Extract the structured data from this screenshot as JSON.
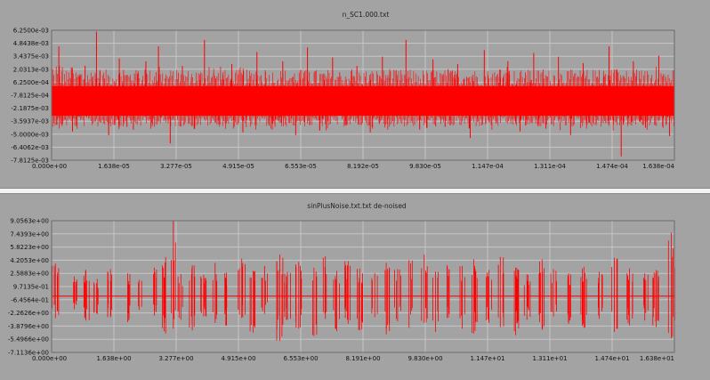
{
  "colors": {
    "background": "#a3a3a3",
    "grid": "#c6c6c6",
    "series": "#ff0000",
    "divider": "#f4f4f4"
  },
  "chart_data": [
    {
      "type": "line",
      "title": "n_SC1.000.txt",
      "xlabel": "",
      "ylabel": "",
      "grid": true,
      "legend": "none",
      "xlim": [
        0,
        0.0001638
      ],
      "ylim": [
        -0.0078125,
        0.00625
      ],
      "x_tick_labels": [
        "0.000e+00",
        "1.638e-05",
        "3.277e-05",
        "4.915e-05",
        "6.553e-05",
        "8.192e-05",
        "9.830e-05",
        "1.147e-04",
        "1.311e-04",
        "1.474e-04",
        "1.638e-04"
      ],
      "y_tick_labels": [
        "6.2500e-03",
        "4.8438e-03",
        "3.4375e-03",
        "2.0313e-03",
        "6.2500e-04",
        "-7.8125e-04",
        "-2.1875e-03",
        "-3.5937e-03",
        "-5.0000e-03",
        "-6.4062e-03",
        "-7.8125e-03"
      ],
      "series": [
        {
          "description_values": {
            "band_low": -0.003,
            "band_high": 0.0002,
            "spikes": [
              [
                1.9e-06,
                0.0045
              ],
              [
                5.5e-06,
                -0.0047
              ],
              [
                8.8e-06,
                0.0024
              ],
              [
                1.18e-05,
                0.0061
              ],
              [
                1.5e-05,
                -0.0051
              ],
              [
                1.78e-05,
                0.0032
              ],
              [
                2.15e-05,
                -0.0045
              ],
              [
                2.48e-05,
                0.0029
              ],
              [
                2.81e-05,
                0.0045
              ],
              [
                3.12e-05,
                -0.006
              ],
              [
                3.44e-05,
                0.0024
              ],
              [
                3.75e-05,
                -0.0044
              ],
              [
                4.02e-05,
                0.0052
              ],
              [
                4.4e-05,
                -0.0039
              ],
              [
                4.74e-05,
                0.0026
              ],
              [
                5.03e-05,
                -0.0048
              ],
              [
                5.4e-05,
                0.0039
              ],
              [
                5.72e-05,
                -0.0036
              ],
              [
                6.08e-05,
                0.0029
              ],
              [
                6.42e-05,
                -0.0051
              ],
              [
                6.73e-05,
                0.0044
              ],
              [
                7.05e-05,
                -0.0046
              ],
              [
                7.39e-05,
                0.0033
              ],
              [
                7.7e-05,
                -0.004
              ],
              [
                8.03e-05,
                0.0024
              ],
              [
                8.38e-05,
                -0.0048
              ],
              [
                8.7e-05,
                0.0034
              ],
              [
                9.01e-05,
                -0.0037
              ],
              [
                9.32e-05,
                0.0052
              ],
              [
                9.68e-05,
                -0.0045
              ],
              [
                0.0001003,
                0.0031
              ],
              [
                0.0001035,
                -0.0042
              ],
              [
                0.0001068,
                0.0026
              ],
              [
                0.0001101,
                -0.0054
              ],
              [
                0.0001138,
                0.0041
              ],
              [
                0.0001168,
                -0.0036
              ],
              [
                0.00012,
                0.0029
              ],
              [
                0.0001232,
                -0.0047
              ],
              [
                0.0001268,
                0.0038
              ],
              [
                0.00013,
                -0.0044
              ],
              [
                0.0001333,
                0.0034
              ],
              [
                0.0001365,
                -0.0051
              ],
              [
                0.0001398,
                0.0027
              ],
              [
                0.0001432,
                -0.004
              ],
              [
                0.0001466,
                0.0045
              ],
              [
                0.0001498,
                -0.0074
              ],
              [
                0.000153,
                0.0029
              ],
              [
                0.0001562,
                -0.0043
              ],
              [
                0.0001597,
                0.0035
              ],
              [
                0.0001625,
                -0.0052
              ]
            ]
          }
        }
      ]
    },
    {
      "type": "line",
      "title": "sinPlusNoise.txt.txt de-noised",
      "xlabel": "",
      "ylabel": "",
      "grid": true,
      "legend": "none",
      "xlim": [
        0,
        16.38
      ],
      "ylim": [
        -7.1136,
        9.0563
      ],
      "x_tick_labels": [
        "0.000e+00",
        "1.638e+00",
        "3.277e+00",
        "4.915e+00",
        "6.553e+00",
        "8.191e+00",
        "9.830e+00",
        "1.147e+01",
        "1.311e+01",
        "1.474e+01",
        "1.638e+01"
      ],
      "y_tick_labels": [
        "9.0563e+00",
        "7.4393e+00",
        "5.8223e+00",
        "4.2053e+00",
        "2.5883e+00",
        "9.7135e-01",
        "-6.4564e-01",
        "-2.2626e+00",
        "-3.8796e+00",
        "-5.4966e+00",
        "-7.1136e+00"
      ],
      "series": [
        {
          "baseline": -0.2,
          "clusters": [
            [
              0.1,
              3.8,
              -2.9
            ],
            [
              0.6,
              2.2,
              -1.8
            ],
            [
              0.9,
              3.0,
              -3.2
            ],
            [
              1.2,
              1.9,
              -2.4
            ],
            [
              1.55,
              3.1,
              -2.8
            ],
            [
              2.0,
              2.6,
              -3.4
            ],
            [
              2.3,
              1.8,
              -1.9
            ],
            [
              2.7,
              3.3,
              -2.6
            ],
            [
              3.0,
              4.6,
              -4.8
            ],
            [
              3.2,
              9.05,
              -4.2
            ],
            [
              3.4,
              2.5,
              -3.1
            ],
            [
              3.7,
              3.6,
              -4.4
            ],
            [
              4.0,
              2.4,
              -2.7
            ],
            [
              4.3,
              3.9,
              -3.5
            ],
            [
              4.6,
              2.7,
              -3.8
            ],
            [
              5.0,
              4.4,
              -2.9
            ],
            [
              5.3,
              2.9,
              -4.7
            ],
            [
              5.6,
              3.5,
              -2.4
            ],
            [
              6.0,
              4.9,
              -5.7
            ],
            [
              6.2,
              2.8,
              -3.1
            ],
            [
              6.5,
              4.0,
              -4.2
            ],
            [
              6.9,
              3.3,
              -5.1
            ],
            [
              7.2,
              4.7,
              -3.0
            ],
            [
              7.5,
              2.9,
              -4.5
            ],
            [
              7.8,
              4.1,
              -3.6
            ],
            [
              8.1,
              3.2,
              -4.4
            ],
            [
              8.5,
              2.6,
              -2.8
            ],
            [
              8.8,
              3.9,
              -4.9
            ],
            [
              9.1,
              3.1,
              -3.3
            ],
            [
              9.4,
              4.2,
              -4.1
            ],
            [
              9.8,
              4.9,
              -3.5
            ],
            [
              10.1,
              2.8,
              -4.6
            ],
            [
              10.4,
              3.6,
              -2.9
            ],
            [
              10.8,
              3.5,
              -4.2
            ],
            [
              11.1,
              4.3,
              -4.8
            ],
            [
              11.5,
              3.0,
              -3.5
            ],
            [
              11.8,
              4.6,
              -4.0
            ],
            [
              12.2,
              3.3,
              -5.0
            ],
            [
              12.5,
              2.5,
              -3.1
            ],
            [
              12.9,
              4.3,
              -4.3
            ],
            [
              13.2,
              3.1,
              -2.7
            ],
            [
              13.6,
              2.6,
              -3.6
            ],
            [
              14.0,
              3.4,
              -4.1
            ],
            [
              14.4,
              2.8,
              -3.0
            ],
            [
              14.8,
              4.5,
              -4.6
            ],
            [
              15.2,
              3.2,
              -3.8
            ],
            [
              15.6,
              2.6,
              -3.2
            ],
            [
              15.9,
              3.0,
              -4.0
            ],
            [
              16.3,
              7.6,
              -5.4
            ]
          ]
        }
      ]
    }
  ]
}
